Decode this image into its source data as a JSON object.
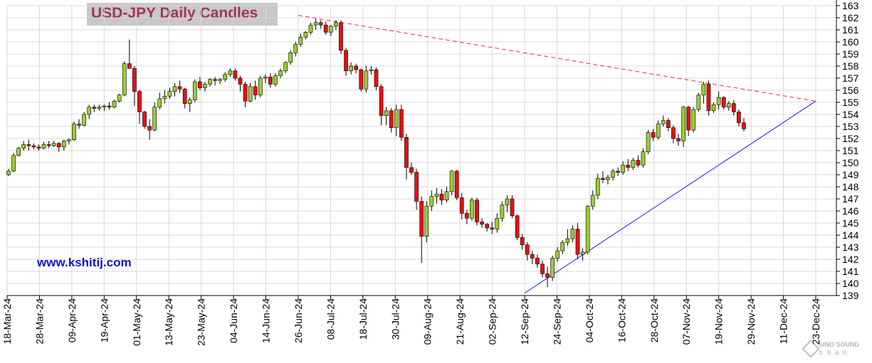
{
  "header": {
    "title": "USD-JPY Daily Candles",
    "website": "www.kshitij.com"
  },
  "watermark": {
    "brand": "SINO SOUND",
    "sub": "新 聲 通 訊"
  },
  "colors": {
    "up_candle": "#9acd32",
    "down_candle": "#e81010",
    "wick": "#000000",
    "resistance_line": "#e83030",
    "support_line": "#2020e0",
    "grid": "#d8d8d8",
    "title_text": "#a3325e",
    "website_text": "#1010d0"
  },
  "chart_data": {
    "type": "candlestick",
    "title": "USD-JPY Daily Candles",
    "ylim": [
      139,
      163
    ],
    "y_ticks": [
      139,
      140,
      141,
      142,
      143,
      144,
      145,
      146,
      147,
      148,
      149,
      150,
      151,
      152,
      153,
      154,
      155,
      156,
      157,
      158,
      159,
      160,
      161,
      162,
      163
    ],
    "y_axis_side": "right",
    "grid": true,
    "x_ticks": [
      "18-Mar-24",
      "28-Mar-24",
      "09-Apr-24",
      "19-Apr-24",
      "01-May-24",
      "13-May-24",
      "23-May-24",
      "04-Jun-24",
      "14-Jun-24",
      "26-Jun-24",
      "08-Jul-24",
      "18-Jul-24",
      "30-Jul-24",
      "09-Aug-24",
      "21-Aug-24",
      "02-Sep-24",
      "12-Sep-24",
      "24-Sep-24",
      "04-Oct-24",
      "16-Oct-24",
      "28-Oct-24",
      "07-Nov-24",
      "19-Nov-24",
      "29-Nov-24",
      "11-Dec-24",
      "23-Dec-24"
    ],
    "trendlines": [
      {
        "name": "resistance",
        "style": "dashed",
        "from": [
          "26-Jun-24",
          162.2
        ],
        "to": [
          "23-Dec-24",
          155.1
        ]
      },
      {
        "name": "support",
        "style": "solid",
        "from": [
          "12-Sep-24",
          139.2
        ],
        "to": [
          "23-Dec-24",
          155.1
        ]
      }
    ],
    "candles": [
      [
        149.0,
        149.5,
        148.9,
        149.3
      ],
      [
        149.3,
        150.8,
        149.2,
        150.6
      ],
      [
        150.6,
        151.3,
        150.5,
        151.2
      ],
      [
        151.2,
        151.8,
        151.0,
        151.5
      ],
      [
        151.5,
        151.9,
        151.0,
        151.4
      ],
      [
        151.4,
        151.6,
        151.1,
        151.3
      ],
      [
        151.3,
        151.5,
        151.0,
        151.2
      ],
      [
        151.2,
        151.7,
        151.1,
        151.5
      ],
      [
        151.5,
        151.8,
        151.2,
        151.4
      ],
      [
        151.4,
        151.8,
        151.3,
        151.6
      ],
      [
        151.6,
        151.7,
        150.9,
        151.3
      ],
      [
        151.3,
        151.9,
        151.0,
        151.8
      ],
      [
        151.8,
        152.0,
        151.5,
        151.9
      ],
      [
        151.9,
        153.4,
        151.8,
        153.2
      ],
      [
        153.2,
        153.6,
        152.8,
        153.1
      ],
      [
        153.1,
        154.2,
        153.0,
        154.0
      ],
      [
        154.0,
        154.8,
        153.6,
        154.6
      ],
      [
        154.6,
        154.8,
        154.2,
        154.5
      ],
      [
        154.5,
        154.8,
        154.3,
        154.6
      ],
      [
        154.6,
        154.8,
        154.3,
        154.7
      ],
      [
        154.7,
        155.0,
        154.4,
        154.6
      ],
      [
        154.6,
        155.2,
        154.5,
        155.1
      ],
      [
        155.1,
        155.7,
        155.0,
        155.6
      ],
      [
        155.6,
        158.4,
        155.5,
        158.2
      ],
      [
        158.2,
        160.2,
        157.9,
        157.8
      ],
      [
        157.8,
        158.0,
        154.7,
        155.9
      ],
      [
        155.9,
        156.0,
        153.2,
        154.2
      ],
      [
        154.2,
        154.3,
        152.8,
        153.0
      ],
      [
        153.0,
        153.6,
        151.9,
        152.7
      ],
      [
        152.7,
        155.0,
        152.6,
        154.6
      ],
      [
        154.6,
        155.8,
        154.4,
        155.3
      ],
      [
        155.3,
        156.0,
        154.9,
        155.5
      ],
      [
        155.5,
        156.2,
        155.3,
        155.9
      ],
      [
        155.9,
        156.6,
        155.5,
        156.3
      ],
      [
        156.3,
        156.8,
        155.8,
        156.1
      ],
      [
        156.1,
        156.2,
        154.5,
        154.9
      ],
      [
        154.9,
        155.4,
        154.2,
        155.2
      ],
      [
        155.2,
        156.9,
        155.0,
        156.7
      ],
      [
        156.7,
        157.1,
        156.0,
        156.2
      ],
      [
        156.2,
        156.7,
        155.9,
        156.5
      ],
      [
        156.5,
        157.0,
        156.3,
        156.9
      ],
      [
        156.9,
        157.1,
        156.4,
        156.8
      ],
      [
        156.8,
        157.0,
        156.5,
        156.9
      ],
      [
        156.9,
        157.5,
        156.7,
        157.3
      ],
      [
        157.3,
        157.8,
        157.1,
        157.6
      ],
      [
        157.6,
        157.8,
        156.8,
        157.0
      ],
      [
        157.0,
        157.2,
        155.9,
        156.5
      ],
      [
        156.5,
        156.7,
        154.6,
        155.1
      ],
      [
        155.1,
        156.6,
        155.0,
        156.3
      ],
      [
        156.3,
        156.8,
        155.2,
        155.6
      ],
      [
        155.6,
        157.2,
        155.4,
        157.0
      ],
      [
        157.0,
        157.3,
        156.6,
        157.1
      ],
      [
        157.1,
        157.4,
        156.2,
        156.5
      ],
      [
        156.5,
        157.4,
        156.3,
        157.2
      ],
      [
        157.2,
        157.8,
        157.0,
        157.6
      ],
      [
        157.6,
        158.4,
        157.4,
        158.3
      ],
      [
        158.3,
        159.3,
        158.1,
        159.1
      ],
      [
        159.1,
        160.0,
        158.8,
        159.8
      ],
      [
        159.8,
        160.7,
        159.6,
        160.4
      ],
      [
        160.4,
        160.9,
        160.2,
        160.8
      ],
      [
        160.8,
        161.6,
        160.6,
        161.4
      ],
      [
        161.4,
        161.9,
        161.0,
        161.6
      ],
      [
        161.6,
        161.8,
        161.1,
        161.4
      ],
      [
        161.4,
        161.7,
        160.6,
        160.8
      ],
      [
        160.8,
        161.4,
        160.5,
        161.3
      ],
      [
        161.3,
        161.8,
        161.0,
        161.6
      ],
      [
        161.6,
        161.8,
        159.0,
        159.3
      ],
      [
        159.3,
        159.5,
        157.2,
        157.6
      ],
      [
        157.6,
        158.3,
        157.3,
        158.0
      ],
      [
        158.0,
        158.2,
        157.4,
        157.7
      ],
      [
        157.7,
        157.8,
        155.9,
        156.1
      ],
      [
        156.1,
        158.0,
        155.8,
        157.6
      ],
      [
        157.6,
        158.0,
        157.3,
        157.7
      ],
      [
        157.7,
        157.9,
        156.0,
        156.3
      ],
      [
        156.3,
        156.5,
        153.1,
        153.9
      ],
      [
        153.9,
        154.6,
        153.1,
        154.3
      ],
      [
        154.3,
        154.5,
        152.5,
        152.9
      ],
      [
        152.9,
        154.8,
        152.2,
        154.4
      ],
      [
        154.4,
        154.8,
        151.8,
        152.1
      ],
      [
        152.1,
        152.4,
        148.6,
        149.6
      ],
      [
        149.6,
        150.0,
        149.0,
        149.2
      ],
      [
        149.2,
        149.5,
        146.1,
        146.8
      ],
      [
        146.8,
        147.2,
        141.7,
        143.9
      ],
      [
        143.9,
        146.8,
        143.4,
        146.4
      ],
      [
        146.4,
        147.7,
        146.0,
        147.2
      ],
      [
        147.2,
        147.9,
        146.6,
        147.4
      ],
      [
        147.4,
        147.8,
        146.5,
        146.9
      ],
      [
        146.9,
        148.0,
        146.7,
        147.6
      ],
      [
        147.6,
        149.4,
        147.3,
        149.3
      ],
      [
        149.3,
        149.4,
        146.9,
        147.1
      ],
      [
        147.1,
        147.5,
        145.3,
        145.8
      ],
      [
        145.8,
        146.1,
        144.9,
        145.4
      ],
      [
        145.4,
        147.1,
        145.2,
        146.9
      ],
      [
        146.9,
        147.1,
        144.8,
        145.1
      ],
      [
        145.1,
        145.4,
        144.6,
        144.9
      ],
      [
        144.9,
        145.0,
        144.3,
        144.6
      ],
      [
        144.6,
        145.1,
        144.1,
        144.5
      ],
      [
        144.5,
        145.8,
        144.2,
        145.4
      ],
      [
        145.4,
        146.8,
        145.1,
        146.5
      ],
      [
        146.5,
        147.3,
        145.9,
        147.0
      ],
      [
        147.0,
        147.3,
        145.4,
        145.6
      ],
      [
        145.6,
        145.7,
        143.6,
        143.8
      ],
      [
        143.8,
        144.1,
        142.8,
        143.2
      ],
      [
        143.2,
        143.4,
        141.9,
        142.4
      ],
      [
        142.4,
        142.7,
        141.6,
        142.1
      ],
      [
        142.1,
        142.4,
        141.3,
        141.6
      ],
      [
        141.6,
        141.9,
        140.5,
        140.8
      ],
      [
        140.8,
        141.4,
        139.7,
        140.5
      ],
      [
        140.5,
        142.3,
        140.2,
        142.1
      ],
      [
        142.1,
        143.0,
        141.8,
        142.7
      ],
      [
        142.7,
        143.6,
        142.4,
        143.4
      ],
      [
        143.4,
        144.5,
        143.1,
        143.7
      ],
      [
        143.7,
        144.8,
        143.4,
        144.5
      ],
      [
        144.5,
        145.0,
        142.0,
        142.4
      ],
      [
        142.4,
        142.9,
        141.9,
        142.6
      ],
      [
        142.6,
        146.5,
        142.4,
        146.4
      ],
      [
        146.4,
        147.7,
        146.1,
        147.3
      ],
      [
        147.3,
        149.1,
        147.0,
        148.7
      ],
      [
        148.7,
        149.3,
        148.3,
        148.6
      ],
      [
        148.6,
        149.0,
        148.2,
        148.8
      ],
      [
        148.8,
        149.5,
        148.5,
        149.3
      ],
      [
        149.3,
        149.6,
        148.9,
        149.2
      ],
      [
        149.2,
        150.1,
        149.0,
        149.8
      ],
      [
        149.8,
        150.3,
        149.3,
        149.6
      ],
      [
        149.6,
        150.4,
        149.4,
        150.2
      ],
      [
        150.2,
        150.6,
        149.6,
        149.8
      ],
      [
        149.8,
        151.2,
        149.6,
        150.9
      ],
      [
        150.9,
        152.7,
        150.7,
        152.5
      ],
      [
        152.5,
        152.8,
        151.8,
        152.1
      ],
      [
        152.1,
        153.5,
        151.9,
        153.2
      ],
      [
        153.2,
        153.9,
        153.0,
        153.5
      ],
      [
        153.5,
        153.7,
        152.6,
        152.9
      ],
      [
        152.9,
        153.1,
        151.6,
        152.0
      ],
      [
        152.0,
        152.4,
        151.4,
        151.8
      ],
      [
        151.8,
        154.7,
        151.3,
        154.6
      ],
      [
        154.6,
        154.7,
        152.2,
        152.7
      ],
      [
        152.7,
        154.6,
        152.5,
        154.4
      ],
      [
        154.4,
        155.8,
        154.2,
        155.6
      ],
      [
        155.6,
        156.7,
        154.9,
        156.5
      ],
      [
        156.5,
        156.8,
        153.9,
        154.3
      ],
      [
        154.3,
        155.0,
        154.1,
        154.8
      ],
      [
        154.8,
        155.9,
        154.4,
        155.4
      ],
      [
        155.4,
        155.5,
        154.4,
        154.6
      ],
      [
        154.6,
        155.1,
        154.3,
        154.9
      ],
      [
        154.9,
        155.2,
        153.9,
        154.2
      ],
      [
        154.2,
        154.4,
        153.0,
        153.3
      ],
      [
        153.3,
        153.7,
        152.6,
        152.8
      ]
    ]
  }
}
